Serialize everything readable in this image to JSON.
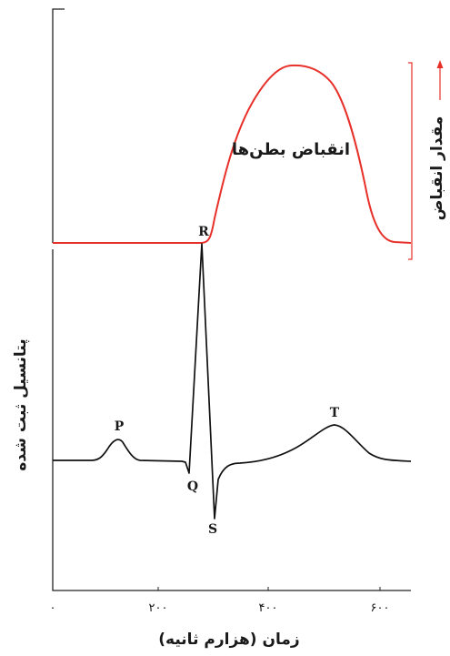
{
  "contraction_panel": {
    "curve_label": "انقباض بطن‌ها",
    "axis_label": "مقدار انقباض",
    "curve_color": "#e8302a",
    "axis_arrow": "arrow-up-icon"
  },
  "ecg_panel": {
    "y_label": "پتانسیل ثبت شده",
    "x_label": "زمان (هزارم ثانیه)",
    "wave_labels": {
      "p": "P",
      "q": "Q",
      "r": "R",
      "s": "S",
      "t": "T"
    },
    "x_ticks": [
      "۰",
      "۲۰۰",
      "۴۰۰",
      "۶۰۰"
    ],
    "line_color": "#111111"
  },
  "chart_data": {
    "type": "line",
    "xlabel": "زمان (هزارم ثانیه)",
    "xlim": [
      0,
      650
    ],
    "x_ticks": [
      0,
      200,
      400,
      600
    ],
    "series": [
      {
        "name": "انقباض بطن‌ها",
        "x": [
          0,
          250,
          270,
          290,
          320,
          360,
          400,
          430,
          460,
          480,
          500,
          520,
          540,
          560,
          650
        ],
        "y": [
          0,
          0,
          0.15,
          0.5,
          0.75,
          0.93,
          0.99,
          1.0,
          0.97,
          0.88,
          0.72,
          0.45,
          0.15,
          0.02,
          0
        ]
      },
      {
        "name": "پتانسیل ثبت شده",
        "x": [
          0,
          50,
          80,
          100,
          115,
          130,
          150,
          200,
          230,
          245,
          270,
          300,
          320,
          350,
          400,
          440,
          470,
          500,
          530,
          560,
          600,
          650
        ],
        "y": [
          0,
          0,
          0.01,
          0.06,
          0.1,
          0.05,
          0,
          0,
          -0.02,
          -0.1,
          1.0,
          -0.25,
          -0.06,
          -0.02,
          0.02,
          0.08,
          0.16,
          0.17,
          0.08,
          0.01,
          0,
          0
        ]
      }
    ]
  }
}
